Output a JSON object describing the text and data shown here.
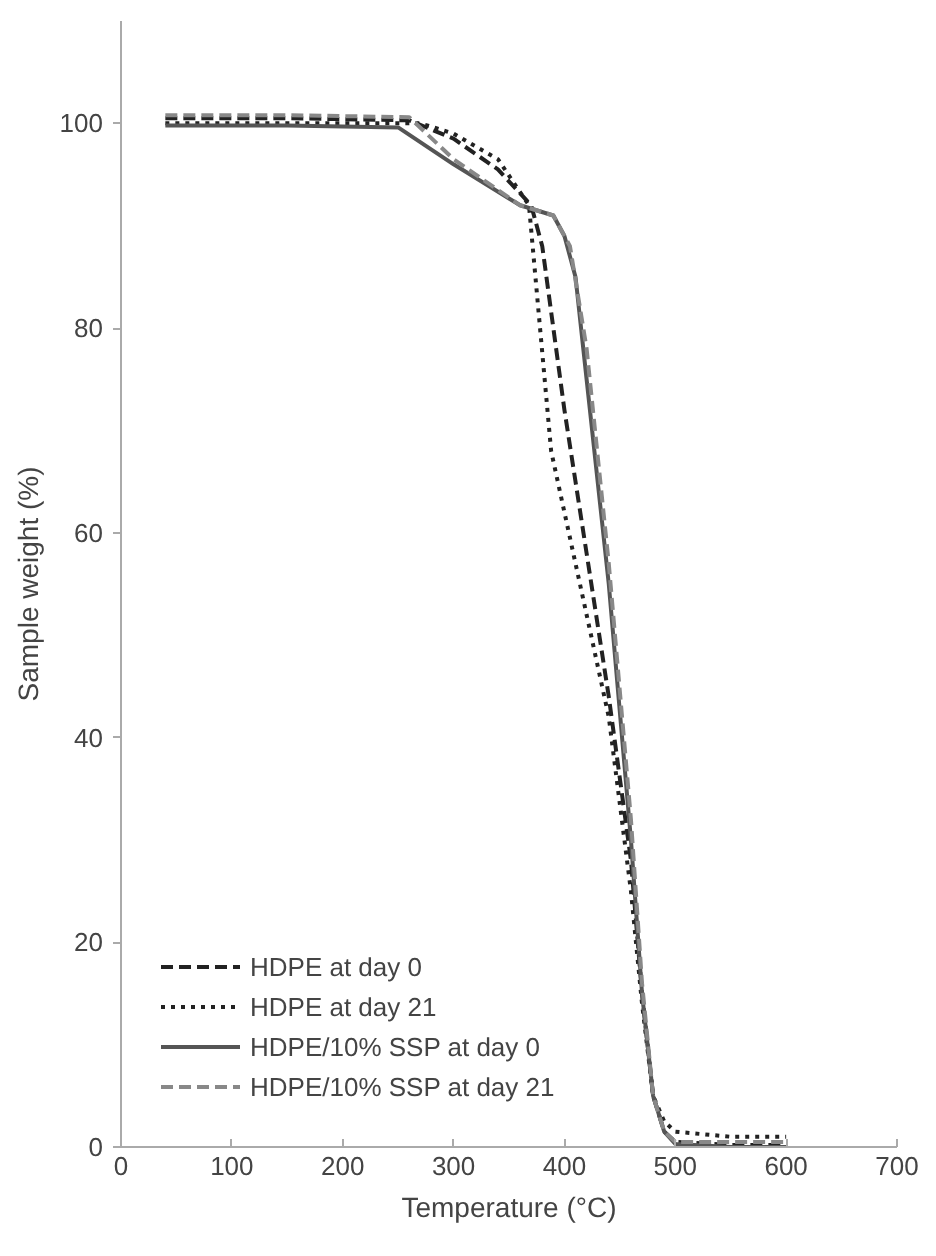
{
  "chart_data": {
    "type": "line",
    "xlabel": "Temperature (°C)",
    "ylabel": "Sample weight (%)",
    "xlim": [
      0,
      700
    ],
    "xticks": [
      0,
      100,
      200,
      300,
      400,
      500,
      600,
      700
    ],
    "ylim": [
      0,
      110
    ],
    "yticks": [
      0,
      20,
      40,
      60,
      80,
      100
    ],
    "grid": false,
    "legend": "bottom left",
    "marker": "none",
    "series": [
      {
        "name": "HDPE at day 0",
        "color": "#222222",
        "line_style": "dashed",
        "x": [
          40,
          150,
          260,
          300,
          340,
          370,
          380,
          390,
          400,
          420,
          440,
          460,
          470,
          480,
          490,
          500,
          550,
          600
        ],
        "values": [
          100.5,
          100.5,
          100.3,
          98.5,
          95.5,
          92,
          88,
          80,
          72,
          58,
          44,
          28,
          15,
          5,
          1.5,
          0.5,
          0.2,
          0.2
        ]
      },
      {
        "name": "HDPE at day 21",
        "color": "#222222",
        "line_style": "dotted",
        "x": [
          40,
          150,
          270,
          300,
          340,
          368,
          378,
          388,
          400,
          420,
          440,
          460,
          470,
          480,
          490,
          500,
          550,
          600
        ],
        "values": [
          100,
          100,
          100,
          99,
          96.5,
          92,
          80,
          68,
          62,
          52,
          42,
          25,
          14,
          5,
          2.5,
          1.5,
          1,
          1
        ]
      },
      {
        "name": "HDPE/10% SSP at day 0",
        "color": "#555555",
        "line_style": "solid",
        "x": [
          40,
          150,
          250,
          300,
          360,
          390,
          400,
          410,
          420,
          440,
          460,
          470,
          480,
          490,
          500,
          550,
          600
        ],
        "values": [
          99.8,
          99.8,
          99.6,
          96,
          92,
          91,
          89,
          85,
          75,
          55,
          30,
          15,
          5,
          1.5,
          0.3,
          0,
          0
        ]
      },
      {
        "name": "HDPE/10% SSP at day 21",
        "color": "#888888",
        "line_style": "dashed",
        "x": [
          40,
          150,
          260,
          300,
          360,
          390,
          405,
          420,
          440,
          460,
          470,
          480,
          490,
          500,
          550,
          600
        ],
        "values": [
          100.8,
          100.8,
          100.6,
          96.5,
          92,
          91,
          88,
          78,
          57,
          32,
          16,
          5,
          1.5,
          0.5,
          0.5,
          0.5
        ]
      }
    ]
  }
}
